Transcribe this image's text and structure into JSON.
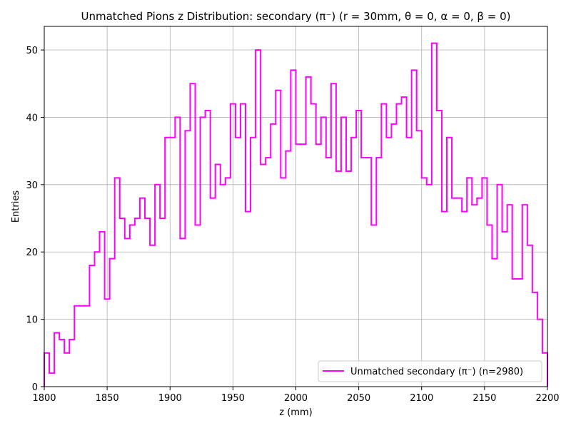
{
  "chart_data": {
    "type": "step-histogram",
    "title": "Unmatched Pions z Distribution: secondary (π⁻) (r = 30mm, θ = 0, α = 0, β = 0)",
    "xlabel": "z (mm)",
    "ylabel": "Entries",
    "xlim": [
      1800,
      2200
    ],
    "ylim": [
      0,
      53.5
    ],
    "grid": true,
    "legend_position": "lower-right",
    "bin_width": 4,
    "x_ticks": [
      1800,
      1850,
      1900,
      1950,
      2000,
      2050,
      2100,
      2150,
      2200
    ],
    "y_ticks": [
      0,
      10,
      20,
      30,
      40,
      50
    ],
    "series": [
      {
        "name": "Unmatched secondary (π⁻) (n=2980)",
        "color": "#ff00ff",
        "bin_edges_start": 1800,
        "values": [
          5,
          2,
          8,
          7,
          5,
          7,
          12,
          12,
          12,
          18,
          20,
          23,
          13,
          19,
          31,
          25,
          22,
          24,
          25,
          28,
          25,
          21,
          30,
          25,
          37,
          37,
          40,
          22,
          38,
          45,
          24,
          40,
          41,
          28,
          33,
          30,
          31,
          42,
          37,
          42,
          26,
          37,
          50,
          33,
          34,
          39,
          44,
          31,
          35,
          47,
          36,
          36,
          46,
          42,
          36,
          40,
          34,
          45,
          32,
          40,
          32,
          37,
          41,
          34,
          34,
          24,
          34,
          42,
          37,
          39,
          42,
          43,
          37,
          47,
          38,
          31,
          30,
          51,
          41,
          26,
          37,
          28,
          28,
          26,
          31,
          27,
          28,
          31,
          24,
          19,
          30,
          23,
          27,
          16,
          16,
          27,
          21,
          14,
          10,
          5
        ]
      }
    ]
  }
}
